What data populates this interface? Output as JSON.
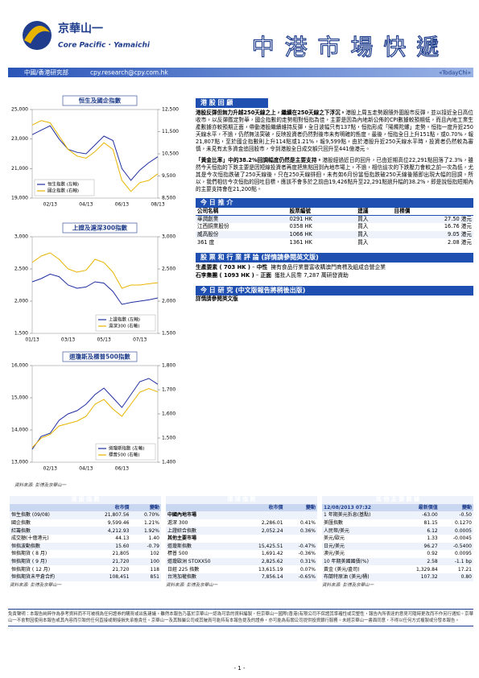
{
  "header": {
    "brand_cn": "京華山一",
    "brand_en": "Core Pacific · Yamaichi",
    "title": "中 港 市 場 快 遞",
    "department": "中國/香港研究部",
    "email": "cpy.research@cpy.com.hk",
    "edition": "«TodayChi»"
  },
  "chart_data": [
    {
      "type": "line",
      "title": "恒生及國企指數",
      "categories": [
        null,
        null,
        "02/13",
        null,
        null,
        null,
        "04/13",
        null,
        null,
        null,
        "06/13",
        null,
        null,
        null,
        "08/13"
      ],
      "ylim": [
        19000,
        25000
      ],
      "yticks": [
        {
          "value": 19000,
          "label": "19,000"
        },
        {
          "value": 21000,
          "label": "21,000"
        },
        {
          "value": 23000,
          "label": "23,000"
        },
        {
          "value": 25000,
          "label": "25,000"
        }
      ],
      "y2lim": [
        8500,
        12500
      ],
      "y2ticks": [
        {
          "value": 8500,
          "label": "8,500"
        },
        {
          "value": 9500,
          "label": "9,500"
        },
        {
          "value": 10500,
          "label": "10,500"
        },
        {
          "value": 11500,
          "label": "11,500"
        },
        {
          "value": 12500,
          "label": "12,500"
        }
      ],
      "legend": "lower-left",
      "series": [
        {
          "name": "恒生指數 (左軸)",
          "color": "#1f2fa0",
          "values": [
            23300,
            23600,
            23900,
            23000,
            22300,
            22100,
            22000,
            22600,
            23200,
            22900,
            21000,
            20200,
            20900,
            21400,
            21800
          ]
        },
        {
          "name": "國企指數 (右軸)",
          "color": "#e8b400",
          "axis": "y2",
          "values": [
            11800,
            12000,
            11900,
            11300,
            10700,
            10400,
            10300,
            10600,
            11000,
            10700,
            9300,
            8800,
            9200,
            9300,
            9600
          ]
        }
      ]
    },
    {
      "type": "line",
      "title": "上證及滬深300指數",
      "categories": [
        "01/13",
        null,
        null,
        null,
        "03/13",
        null,
        null,
        null,
        "05/13",
        null,
        null,
        null,
        "07/13",
        null,
        null
      ],
      "ylim": [
        1500,
        3000
      ],
      "yticks": [
        {
          "value": 1500,
          "label": "1,500"
        },
        {
          "value": 2000,
          "label": "2,000"
        },
        {
          "value": 2500,
          "label": "2,500"
        },
        {
          "value": 3000,
          "label": "3,000"
        }
      ],
      "y2lim": [
        1500,
        3000
      ],
      "y2ticks": [
        {
          "value": 1500,
          "label": "1,500"
        },
        {
          "value": 2000,
          "label": "2,000"
        },
        {
          "value": 2500,
          "label": "2,500"
        },
        {
          "value": 3000,
          "label": "3,000"
        }
      ],
      "legend": "lower-right",
      "series": [
        {
          "name": "上證指數 (左軸)",
          "color": "#1f2fa0",
          "values": [
            2300,
            2350,
            2420,
            2380,
            2250,
            2200,
            2220,
            2300,
            2280,
            2150,
            1950,
            1980,
            2000,
            2020,
            2050
          ]
        },
        {
          "name": "滬深300 (右軸)",
          "color": "#e8b400",
          "axis": "y2",
          "values": [
            2600,
            2700,
            2750,
            2650,
            2500,
            2450,
            2480,
            2650,
            2600,
            2450,
            2200,
            2250,
            2250,
            2270,
            2286
          ]
        }
      ]
    },
    {
      "type": "line",
      "title": "道瓊斯及標普500指數",
      "categories": [
        null,
        null,
        "02/13",
        null,
        null,
        null,
        "04/13",
        null,
        null,
        null,
        "06/13",
        null,
        null,
        null,
        null
      ],
      "ylim": [
        13000,
        16000
      ],
      "yticks": [
        {
          "value": 13000,
          "label": "13,000"
        },
        {
          "value": 14000,
          "label": "14,000"
        },
        {
          "value": 15000,
          "label": "15,000"
        },
        {
          "value": 16000,
          "label": "16,000"
        }
      ],
      "y2lim": [
        1400,
        1800
      ],
      "y2ticks": [
        {
          "value": 1400,
          "label": "1,400"
        },
        {
          "value": 1500,
          "label": "1,500"
        },
        {
          "value": 1600,
          "label": "1,600"
        },
        {
          "value": 1700,
          "label": "1,700"
        },
        {
          "value": 1800,
          "label": "1,800"
        }
      ],
      "legend": "lower-right",
      "series": [
        {
          "name": "道瓊斯指數 (左軸)",
          "color": "#1f2fa0",
          "values": [
            13400,
            13800,
            13900,
            14300,
            14500,
            14600,
            14800,
            15100,
            15300,
            15000,
            14700,
            15100,
            15500,
            15600,
            15420
          ]
        },
        {
          "name": "標普500 (右軸)",
          "color": "#e8b400",
          "axis": "y2",
          "values": [
            1460,
            1500,
            1515,
            1550,
            1560,
            1570,
            1590,
            1640,
            1660,
            1620,
            1590,
            1640,
            1690,
            1705,
            1691
          ]
        }
      ]
    }
  ],
  "chart_source": "資料來源: 彭博及京華山一",
  "review": {
    "title": "港 股 回 顧",
    "lead1": "港股反彈但無力升越250天線之上，繼續在250天線之下浮沉。",
    "body1": "港股上周五走勢跟隨外圍股市反彈，並以接近全日高位收市，以反彈鑑定對華，國企指數的走勢相對恒指為佳，主要是因為內地新公佈的CPI數據較預期低，而且內地工業生產數據亦較預期正面，帶動港股繼續維持反彈，全日波幅只有137點，恒指形成「陽燭陀螺」走勢。恒指一度升近250天線水平，不過，仍然無法突破，反映投資者仍然對後市未有明確的態度。最後，恒指全日上升151點，或0.70%，報21,807點，至於國企指數則上升114點或1.21%，報9,599點，由於港股升近250天線水平時，投資者仍然較為審慎，未見有太多資金追回股市，令到港股全日成交額只回升至441億港元。",
    "lead2": "「黃金比率」中的38.2%回調幅度仍然是主要支持。",
    "body2": "港股經過近日的回升，已由近期高位22,291點回落了2.3%，雖然今天恒指的下跌主要是因短線投資者再度把焦點回到內地市場上，不過，相信這次的下跌壓力會較之前一次為低，尤其是今次恒指跌破了250天線後，只在250天線徘徊，未有如6月份當恒指跌破250天線後隨即出現大幅的回調。所以，我們相信今次恒指的回吐目標，應該不會多於之前由19,426點升至22,291點過升幅的38.2%，即是說恒指短期內的主要支持會在21,200點。"
  },
  "picks": {
    "title": "今 日 推 介",
    "columns": [
      "公司名稱",
      "股票編號",
      "建議",
      "目標價"
    ],
    "rows": [
      [
        "華潤創業",
        "0291 HK",
        "買入",
        "27.50 港元"
      ],
      [
        "江西銅業股份",
        "0358 HK",
        "買入",
        "16.76 港元"
      ],
      [
        "威高股份",
        "1066 HK",
        "買入",
        "9.05 港元"
      ],
      [
        "361 度",
        "1361 HK",
        "買入",
        "2.08 港元"
      ]
    ]
  },
  "comments": {
    "title": "股 票 和 行 業 評 論 (詳情請參閱英文版)",
    "items": [
      {
        "company": "生產要素 ( 703 HK )",
        "view": "中性",
        "text": "擁有食品行業豐富收購澳門商標及組成合營企業"
      },
      {
        "company": "石李集團 ( 1093 HK )",
        "view": "正面",
        "text": "獲批人民幣 7,287 萬研發資助"
      }
    ]
  },
  "research": {
    "title": "今 日 研 究 (中文版報告將稍後出版)",
    "text": "詳情請參閱英文版"
  },
  "tables": [
    {
      "title": "港 股 指 數",
      "columns": [
        "收市價",
        "變動"
      ],
      "rows": [
        [
          "恒生指數 (09/08)",
          "21,807.56",
          "0.70%"
        ],
        [
          "國企指數",
          "9,599.46",
          "1.21%"
        ],
        [
          "紅籌指數",
          "4,212.93",
          "1.92%"
        ],
        [
          "成交額(十億港元)",
          "44.13",
          "1.40"
        ],
        [
          "恒指波動指數",
          "15.60",
          "-0.79"
        ],
        [
          "恒指期貨 ( 8 月)",
          "21,805",
          "102"
        ],
        [
          "恒指期貨 ( 9 月)",
          "21,720",
          "100"
        ],
        [
          "恒指期貨 ( 12 月)",
          "21,720",
          "118"
        ],
        [
          "恒指期貨未平倉合約",
          "108,451",
          "851"
        ]
      ],
      "source": "資料來源: 彭博及京華山一"
    },
    {
      "title": "環 球 指 數",
      "columns": [
        "收市價",
        "變動"
      ],
      "rows": [
        [
          "中國內地市場"
        ],
        [
          "滬深 300",
          "2,286.01",
          "0.41%"
        ],
        [
          "上證綜合指數",
          "2,052.24",
          "0.36%"
        ],
        [
          "其他主要市場"
        ],
        [
          "道瓊斯指數",
          "15,425.51",
          "-0.47%"
        ],
        [
          "標普 500",
          "1,691.42",
          "-0.36%"
        ],
        [
          "道瓊歐洲 STOXX50",
          "2,825.62",
          "0.31%"
        ],
        [
          "日經 225 指數",
          "13,615.19",
          "0.07%"
        ],
        [
          "台灣加權指數",
          "7,856.14",
          "-0.65%"
        ]
      ],
      "source": "資料來源: 彭博及京華山一"
    },
    {
      "title": "其 他 主 要 數 據",
      "columns": [
        "12/08/2013 07:32",
        "最新價值",
        "變動"
      ],
      "rows": [
        [
          "1 年期美元拆息(基點)",
          "-63.00",
          "-0.50"
        ],
        [
          "美匯指數",
          "81.15",
          "0.1270"
        ],
        [
          "人民幣/美元",
          "6.12",
          "0.0005"
        ],
        [
          "美元/歐元",
          "1.33",
          "-0.0045"
        ],
        [
          "日元/美元",
          "96.27",
          "-0.5400"
        ],
        [
          "澳元/美元",
          "0.92",
          "0.0095"
        ],
        [
          "10 年期美國國債(%)",
          "2.58",
          "-1.1 bp"
        ],
        [
          "黃金 (美元/盎司)",
          "1,329.84",
          "17.21"
        ],
        [
          "布蘭特原油 (美元/桶)",
          "107.32",
          "0.80"
        ]
      ],
      "source": "資料來源: 彭博及京華山一"
    }
  ],
  "disclaimer": "免責聲明：本報告純粹作為參考資料而不可被視為任何證券的購買或出售建議。雖然本報告乃基於京華山一認為可靠的資料編製，但京華山一國際(香港)有限公司不保證其準確性或完整性，報告內所表達的意見可隨時更改而不作另行通知。京華山一不會對因使用本報告或其內容而引致的任何直接或間接損失承擔責任。京華山一及其聯屬公司或其僱員可能持有本報告提及的證券，亦可能為有關公司提供投資銀行服務。未經京華山一書面同意，不得以任何方式複製或分發本報告。",
  "page_number": "- 1 -"
}
